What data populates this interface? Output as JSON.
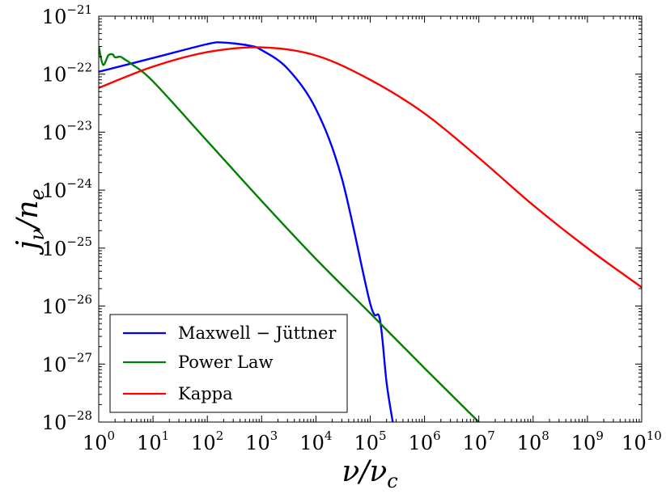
{
  "chart_data": {
    "type": "line",
    "title": "",
    "xlabel": {
      "base": "ν/ν",
      "sub": "c"
    },
    "ylabel": {
      "base": "j",
      "sub1": "ν",
      "mid": "/n",
      "sub2": "e"
    },
    "xscale": "log",
    "yscale": "log",
    "xlim": [
      1,
      10000000000
    ],
    "ylim": [
      1e-28,
      1e-21
    ],
    "xticks": [
      {
        "value": 1,
        "base": "10",
        "exp": "0"
      },
      {
        "value": 10,
        "base": "10",
        "exp": "1"
      },
      {
        "value": 100,
        "base": "10",
        "exp": "2"
      },
      {
        "value": 1000,
        "base": "10",
        "exp": "3"
      },
      {
        "value": 10000,
        "base": "10",
        "exp": "4"
      },
      {
        "value": 100000,
        "base": "10",
        "exp": "5"
      },
      {
        "value": 1000000,
        "base": "10",
        "exp": "6"
      },
      {
        "value": 10000000,
        "base": "10",
        "exp": "7"
      },
      {
        "value": 100000000,
        "base": "10",
        "exp": "8"
      },
      {
        "value": 1000000000,
        "base": "10",
        "exp": "9"
      },
      {
        "value": 10000000000,
        "base": "10",
        "exp": "10"
      }
    ],
    "yticks": [
      {
        "value": 1e-28,
        "base": "10",
        "exp": "−28"
      },
      {
        "value": 1e-27,
        "base": "10",
        "exp": "−27"
      },
      {
        "value": 1e-26,
        "base": "10",
        "exp": "−26"
      },
      {
        "value": 1e-25,
        "base": "10",
        "exp": "−25"
      },
      {
        "value": 1e-24,
        "base": "10",
        "exp": "−24"
      },
      {
        "value": 1e-23,
        "base": "10",
        "exp": "−23"
      },
      {
        "value": 1e-22,
        "base": "10",
        "exp": "−22"
      },
      {
        "value": 1e-21,
        "base": "10",
        "exp": "−21"
      }
    ],
    "legend_position": "lower-left",
    "series": [
      {
        "name": "Maxwell − Jüttner",
        "color": "#0000ff",
        "x": [
          1,
          10,
          100,
          200,
          600,
          1000,
          3000,
          10000,
          30000,
          100000,
          150000,
          200000,
          260000
        ],
        "y": [
          1.1e-22,
          1.9e-22,
          3.3e-22,
          3.5e-22,
          3.1e-22,
          2.6e-22,
          1.25e-22,
          2.5e-23,
          1.6e-24,
          1.1e-26,
          6e-27,
          4.8e-28,
          1e-28
        ]
      },
      {
        "name": "Power Law",
        "color": "#008000",
        "x": [
          1,
          1.2,
          1.5,
          1.8,
          2,
          2.5,
          3,
          4,
          10,
          100,
          1000,
          10000,
          100000,
          1000000,
          10000000
        ],
        "y": [
          3e-22,
          1.45e-22,
          2.1e-22,
          2.2e-22,
          1.95e-22,
          2e-22,
          1.8e-22,
          1.5e-22,
          7.5e-23,
          7e-24,
          6.5e-25,
          6.5e-26,
          7.5e-27,
          8.5e-28,
          1e-28
        ]
      },
      {
        "name": "Kappa",
        "color": "#ff0000",
        "x": [
          1,
          10,
          100,
          1000,
          10000,
          100000,
          1000000,
          10000000,
          100000000,
          1000000000,
          10000000000
        ],
        "y": [
          5.8e-23,
          1.35e-22,
          2.4e-22,
          2.9e-22,
          2.1e-22,
          8e-23,
          2.1e-23,
          3.6e-24,
          5.5e-25,
          1e-25,
          2.1e-26
        ]
      }
    ]
  }
}
